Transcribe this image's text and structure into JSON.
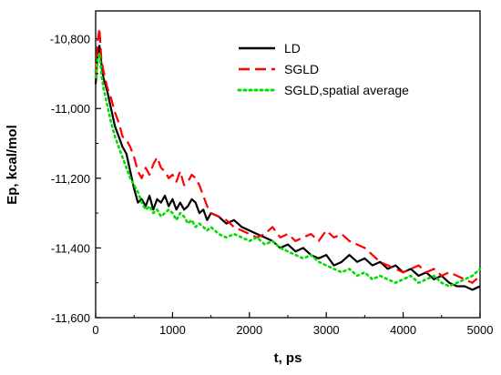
{
  "chart_data": {
    "type": "line",
    "title": "",
    "xlabel": "t, ps",
    "ylabel": "Ep, kcal/mol",
    "xlim": [
      0,
      5000
    ],
    "ylim": [
      -11600,
      -10720
    ],
    "x_ticks": [
      0,
      1000,
      2000,
      3000,
      4000,
      5000
    ],
    "x_tick_labels": [
      "0",
      "1000",
      "2000",
      "3000",
      "4000",
      "5000"
    ],
    "y_ticks": [
      -10800,
      -11000,
      -11200,
      -11400,
      -11600
    ],
    "y_tick_labels": [
      "-10,800",
      "-11,000",
      "-11,200",
      "-11,400",
      "-11,600"
    ],
    "grid": false,
    "legend_position": "top-right",
    "series": [
      {
        "name": "LD",
        "color": "#000000",
        "dash": "solid",
        "x": [
          0,
          25,
          50,
          75,
          100,
          150,
          200,
          250,
          300,
          350,
          400,
          450,
          500,
          550,
          600,
          650,
          700,
          750,
          800,
          850,
          900,
          950,
          1000,
          1050,
          1100,
          1150,
          1200,
          1250,
          1300,
          1350,
          1400,
          1450,
          1500,
          1600,
          1700,
          1800,
          1900,
          2000,
          2100,
          2200,
          2300,
          2400,
          2500,
          2600,
          2700,
          2800,
          2900,
          3000,
          3100,
          3200,
          3300,
          3400,
          3500,
          3600,
          3700,
          3800,
          3900,
          4000,
          4100,
          4200,
          4300,
          4400,
          4500,
          4600,
          4700,
          4800,
          4900,
          5000
        ],
        "y": [
          -10930,
          -10850,
          -10820,
          -10870,
          -10910,
          -10950,
          -11000,
          -11050,
          -11080,
          -11110,
          -11130,
          -11180,
          -11230,
          -11270,
          -11260,
          -11280,
          -11250,
          -11290,
          -11260,
          -11270,
          -11250,
          -11280,
          -11260,
          -11290,
          -11270,
          -11290,
          -11280,
          -11260,
          -11270,
          -11300,
          -11290,
          -11320,
          -11300,
          -11310,
          -11330,
          -11320,
          -11340,
          -11350,
          -11360,
          -11370,
          -11380,
          -11400,
          -11390,
          -11410,
          -11400,
          -11420,
          -11430,
          -11420,
          -11450,
          -11440,
          -11420,
          -11440,
          -11430,
          -11450,
          -11440,
          -11460,
          -11450,
          -11470,
          -11460,
          -11480,
          -11470,
          -11490,
          -11480,
          -11500,
          -11510,
          -11510,
          -11520,
          -11510
        ]
      },
      {
        "name": "SGLD",
        "color": "#ff0000",
        "dash": "dashed",
        "x": [
          0,
          25,
          50,
          75,
          100,
          150,
          200,
          250,
          300,
          350,
          400,
          450,
          500,
          550,
          600,
          650,
          700,
          750,
          800,
          850,
          900,
          950,
          1000,
          1050,
          1100,
          1150,
          1200,
          1250,
          1300,
          1350,
          1400,
          1450,
          1500,
          1600,
          1700,
          1800,
          1900,
          2000,
          2100,
          2200,
          2300,
          2400,
          2500,
          2600,
          2700,
          2800,
          2900,
          3000,
          3100,
          3200,
          3300,
          3400,
          3500,
          3600,
          3700,
          3800,
          3900,
          4000,
          4100,
          4200,
          4300,
          4400,
          4500,
          4600,
          4700,
          4800,
          4900,
          5000
        ],
        "y": [
          -10900,
          -10810,
          -10770,
          -10860,
          -10890,
          -10940,
          -10970,
          -11010,
          -11040,
          -11080,
          -11090,
          -11110,
          -11140,
          -11180,
          -11200,
          -11170,
          -11190,
          -11160,
          -11140,
          -11170,
          -11180,
          -11200,
          -11190,
          -11210,
          -11180,
          -11220,
          -11210,
          -11190,
          -11200,
          -11220,
          -11250,
          -11280,
          -11300,
          -11310,
          -11320,
          -11340,
          -11350,
          -11360,
          -11370,
          -11360,
          -11340,
          -11370,
          -11360,
          -11380,
          -11370,
          -11360,
          -11380,
          -11350,
          -11370,
          -11360,
          -11380,
          -11390,
          -11400,
          -11420,
          -11440,
          -11450,
          -11460,
          -11470,
          -11460,
          -11450,
          -11470,
          -11460,
          -11480,
          -11470,
          -11480,
          -11490,
          -11500,
          -11480
        ]
      },
      {
        "name": "SGLD,spatial average",
        "color": "#00dd00",
        "dash": "dotted",
        "x": [
          0,
          25,
          50,
          75,
          100,
          150,
          200,
          250,
          300,
          350,
          400,
          450,
          500,
          550,
          600,
          650,
          700,
          750,
          800,
          850,
          900,
          950,
          1000,
          1050,
          1100,
          1150,
          1200,
          1250,
          1300,
          1350,
          1400,
          1450,
          1500,
          1600,
          1700,
          1800,
          1900,
          2000,
          2100,
          2200,
          2300,
          2400,
          2500,
          2600,
          2700,
          2800,
          2900,
          3000,
          3100,
          3200,
          3300,
          3400,
          3500,
          3600,
          3700,
          3800,
          3900,
          4000,
          4100,
          4200,
          4300,
          4400,
          4500,
          4600,
          4700,
          4800,
          4900,
          5000
        ],
        "y": [
          -10910,
          -10860,
          -10840,
          -10900,
          -10940,
          -10990,
          -11040,
          -11080,
          -11110,
          -11140,
          -11170,
          -11200,
          -11220,
          -11240,
          -11270,
          -11290,
          -11280,
          -11300,
          -11290,
          -11310,
          -11300,
          -11290,
          -11300,
          -11320,
          -11300,
          -11310,
          -11330,
          -11320,
          -11340,
          -11330,
          -11340,
          -11350,
          -11340,
          -11360,
          -11370,
          -11360,
          -11370,
          -11380,
          -11370,
          -11390,
          -11380,
          -11400,
          -11410,
          -11420,
          -11430,
          -11420,
          -11440,
          -11450,
          -11460,
          -11470,
          -11460,
          -11480,
          -11470,
          -11490,
          -11480,
          -11490,
          -11500,
          -11490,
          -11480,
          -11500,
          -11490,
          -11480,
          -11500,
          -11510,
          -11500,
          -11490,
          -11480,
          -11460
        ]
      }
    ]
  }
}
